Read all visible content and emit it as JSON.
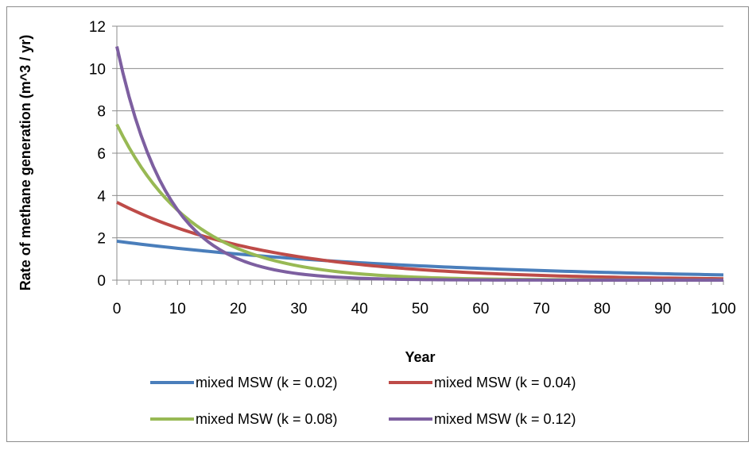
{
  "chart_data": {
    "type": "line",
    "title": "",
    "xlabel": "Year",
    "ylabel": "Rate of methane generation (m^3 / yr)",
    "xlim": [
      0,
      100
    ],
    "ylim": [
      0,
      12
    ],
    "xticks": [
      0,
      10,
      20,
      30,
      40,
      50,
      60,
      70,
      80,
      90,
      100
    ],
    "yticks": [
      0,
      2,
      4,
      6,
      8,
      10,
      12
    ],
    "grid": "horizontal",
    "legend_position": "bottom",
    "series": [
      {
        "name": "mixed MSW  (k = 0.02)",
        "color": "#4a7ebb",
        "k": 0.02,
        "initial": 1.84,
        "x": [
          0,
          10,
          20,
          30,
          40,
          50,
          60,
          70,
          80,
          90,
          100
        ],
        "y": [
          1.84,
          1.51,
          1.23,
          1.01,
          0.83,
          0.68,
          0.55,
          0.45,
          0.37,
          0.3,
          0.25
        ]
      },
      {
        "name": "mixed MSW  (k = 0.04)",
        "color": "#be4b48",
        "k": 0.04,
        "initial": 3.68,
        "x": [
          0,
          10,
          20,
          30,
          40,
          50,
          60,
          70,
          80,
          90,
          100
        ],
        "y": [
          3.68,
          2.47,
          1.65,
          1.11,
          0.74,
          0.5,
          0.33,
          0.22,
          0.15,
          0.1,
          0.07
        ]
      },
      {
        "name": "mixed MSW  (k = 0.08)",
        "color": "#98b954",
        "k": 0.08,
        "initial": 7.36,
        "x": [
          0,
          10,
          20,
          30,
          40,
          50,
          60,
          70,
          80,
          90,
          100
        ],
        "y": [
          7.36,
          3.31,
          1.49,
          0.67,
          0.3,
          0.13,
          0.06,
          0.03,
          0.01,
          0.01,
          0.0
        ]
      },
      {
        "name": "mixed MSW  (k = 0.12)",
        "color": "#7d5fa0",
        "k": 0.12,
        "initial": 11.04,
        "x": [
          0,
          10,
          20,
          30,
          40,
          50,
          60,
          70,
          80,
          90,
          100
        ],
        "y": [
          11.04,
          3.33,
          1.0,
          0.3,
          0.09,
          0.03,
          0.01,
          0.0,
          0.0,
          0.0,
          0.0
        ]
      }
    ]
  }
}
